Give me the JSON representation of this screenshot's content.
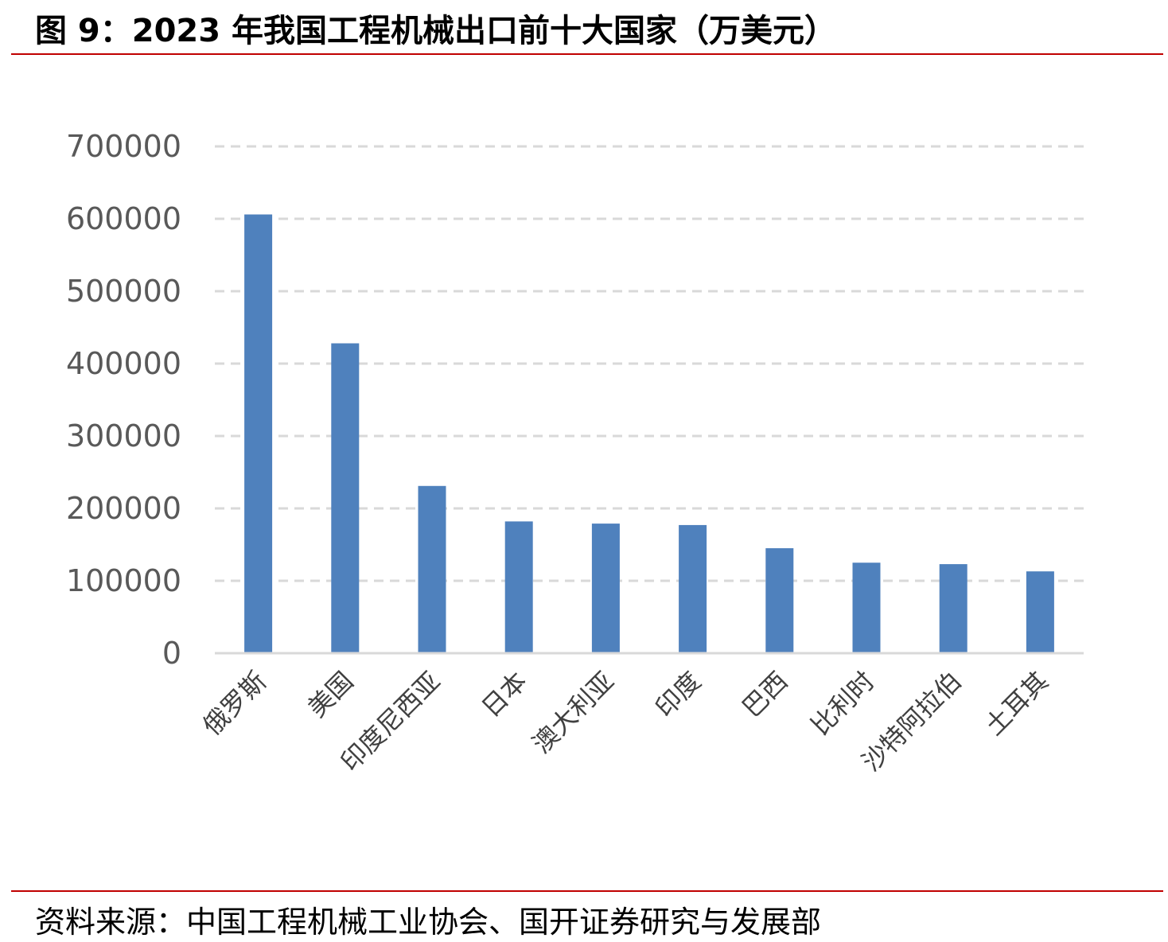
{
  "figure": {
    "title": "图 9：2023 年我国工程机械出口前十大国家（万美元）",
    "source": "资料来源：中国工程机械工业协会、国开证券研究与发展部",
    "rule_color": "#c00000"
  },
  "chart_data": {
    "type": "bar",
    "title": "",
    "xlabel": "",
    "ylabel": "",
    "categories": [
      "俄罗斯",
      "美国",
      "印度尼西亚",
      "日本",
      "澳大利亚",
      "印度",
      "巴西",
      "比利时",
      "沙特阿拉伯",
      "土耳其"
    ],
    "values": [
      606000,
      428000,
      231000,
      182000,
      179000,
      177000,
      145000,
      125000,
      123000,
      113000
    ],
    "ylim": [
      0,
      700000
    ],
    "yticks": [
      "0",
      "100000",
      "200000",
      "300000",
      "400000",
      "500000",
      "600000",
      "700000"
    ],
    "grid": "horizontal dashed",
    "legend": "none",
    "bar_color": "#4f81bd",
    "grid_color": "#d9d9d9",
    "axis_color": "#d9d9d9"
  }
}
